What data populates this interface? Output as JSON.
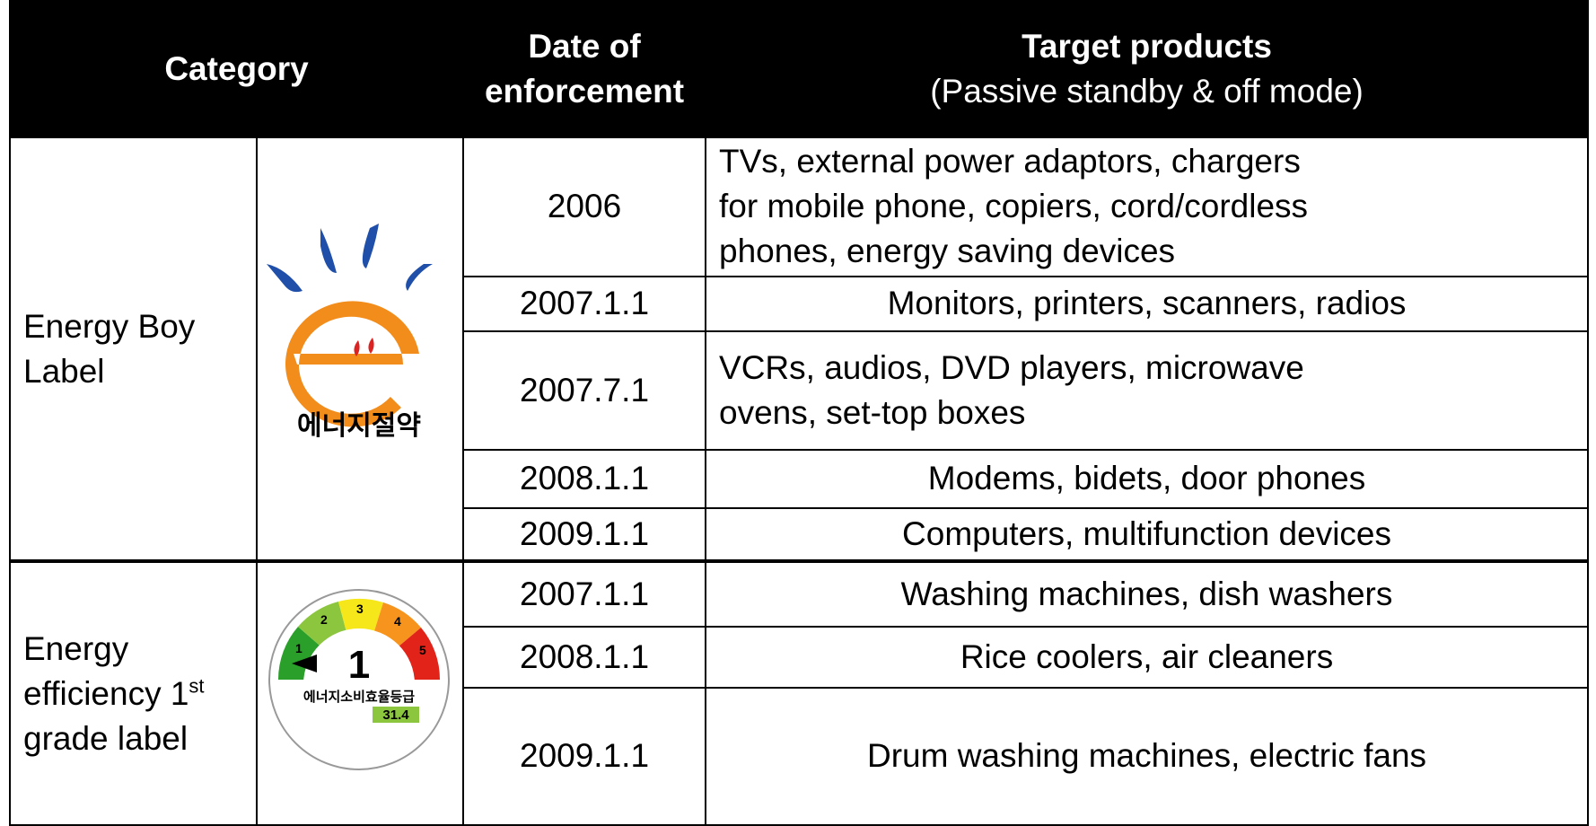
{
  "header": {
    "category": "Category",
    "date": [
      "Date of",
      "enforcement"
    ],
    "target_title": "Target products",
    "target_sub": "(Passive standby & off mode)"
  },
  "groups": [
    {
      "label": [
        "Energy Boy",
        "Label"
      ],
      "logo_text": "에너지절약",
      "rows": [
        {
          "date": "2006",
          "products": [
            "TVs, external power adaptors, chargers",
            "for mobile phone, copiers, cord/cordless",
            "phones, energy saving devices"
          ]
        },
        {
          "date": "2007.1.1",
          "products": [
            "Monitors, printers, scanners, radios"
          ]
        },
        {
          "date": "2007.7.1",
          "products": [
            "VCRs, audios, DVD players, microwave",
            "ovens, set-top boxes"
          ]
        },
        {
          "date": "2008.1.1",
          "products": [
            "Modems, bidets, door phones"
          ]
        },
        {
          "date": "2009.1.1",
          "products": [
            "Computers, multifunction devices"
          ]
        }
      ]
    },
    {
      "label": [
        "Energy",
        "efficiency 1",
        "st",
        "grade label"
      ],
      "logo_text": {
        "grades": [
          "1",
          "2",
          "3",
          "4",
          "5"
        ],
        "title": "에너지소비효율등급",
        "value": "31.4"
      },
      "rows": [
        {
          "date": "2007.1.1",
          "products": [
            "Washing machines, dish washers"
          ]
        },
        {
          "date": "2008.1.1",
          "products": [
            "Rice coolers, air cleaners"
          ]
        },
        {
          "date": "2009.1.1",
          "products": [
            "Drum washing machines, electric fans"
          ]
        }
      ]
    }
  ]
}
